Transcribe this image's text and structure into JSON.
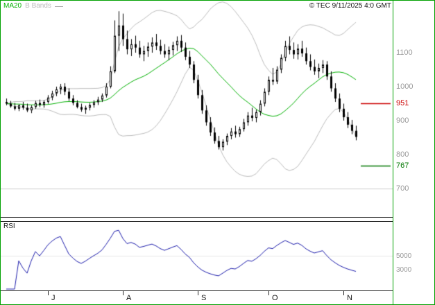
{
  "header": {
    "ma20_label": "MA20",
    "bbands_label": "B Bands",
    "copyright": "© TEC 9/11/2025 4:0 GMT"
  },
  "panels": {
    "rsi_label": "RSI"
  },
  "colors": {
    "border": "#00a000",
    "ma20": "#00b000",
    "bbands": "#bbbbbb",
    "candle": "#000000",
    "rsi": "#1a1aaa",
    "resistance": "#cc0000",
    "support": "#007700",
    "axis_text": "#999999",
    "grid": "#cccccc"
  },
  "levels": {
    "resistance": {
      "value": 951,
      "label": "951"
    },
    "support": {
      "value": 767,
      "label": "767"
    }
  },
  "y_axis": {
    "labels": [
      {
        "text": "1100",
        "value": 1100
      },
      {
        "text": "1000",
        "value": 1000
      },
      {
        "text": "951",
        "value": 951,
        "color": "resistance"
      },
      {
        "text": "900",
        "value": 900
      },
      {
        "text": "800",
        "value": 800
      },
      {
        "text": "767",
        "value": 767,
        "color": "support"
      },
      {
        "text": "700",
        "value": 700
      }
    ]
  },
  "x_axis": {
    "month_ticks": [
      {
        "label": "J",
        "index": 10
      },
      {
        "label": "A",
        "index": 28
      },
      {
        "label": "S",
        "index": 46
      },
      {
        "label": "O",
        "index": 63
      },
      {
        "label": "N",
        "index": 81
      }
    ]
  },
  "rsi_axis": {
    "labels": [
      {
        "text": "5000",
        "value": 50
      },
      {
        "text": "3000",
        "value": 30
      }
    ]
  },
  "chart_data": {
    "type": "candlestick",
    "title": "",
    "legend": [
      "MA20",
      "B Bands"
    ],
    "ylim": [
      680,
      1250
    ],
    "indicators": {
      "ma_period": 20,
      "bollinger_stddev": 2,
      "rsi_period": 14
    },
    "levels": {
      "resistance": 951,
      "support": 767
    },
    "candles_format": "[open, high, low, close]",
    "candles": [
      [
        955,
        965,
        945,
        950
      ],
      [
        950,
        958,
        938,
        942
      ],
      [
        942,
        952,
        930,
        935
      ],
      [
        935,
        948,
        928,
        945
      ],
      [
        945,
        955,
        932,
        938
      ],
      [
        938,
        950,
        925,
        930
      ],
      [
        930,
        945,
        922,
        940
      ],
      [
        940,
        958,
        935,
        952
      ],
      [
        952,
        962,
        940,
        946
      ],
      [
        946,
        960,
        938,
        955
      ],
      [
        955,
        975,
        950,
        968
      ],
      [
        968,
        988,
        960,
        980
      ],
      [
        980,
        1000,
        972,
        992
      ],
      [
        992,
        1008,
        978,
        1000
      ],
      [
        1000,
        1010,
        975,
        985
      ],
      [
        985,
        995,
        958,
        965
      ],
      [
        965,
        975,
        945,
        952
      ],
      [
        952,
        960,
        936,
        940
      ],
      [
        940,
        950,
        926,
        932
      ],
      [
        932,
        944,
        920,
        938
      ],
      [
        938,
        952,
        930,
        946
      ],
      [
        946,
        960,
        938,
        954
      ],
      [
        954,
        970,
        946,
        962
      ],
      [
        962,
        980,
        955,
        974
      ],
      [
        974,
        1010,
        968,
        1000
      ],
      [
        1000,
        1060,
        995,
        1045
      ],
      [
        1045,
        1195,
        1040,
        1150
      ],
      [
        1150,
        1222,
        1105,
        1180
      ],
      [
        1180,
        1215,
        1120,
        1140
      ],
      [
        1140,
        1165,
        1095,
        1110
      ],
      [
        1110,
        1140,
        1090,
        1125
      ],
      [
        1125,
        1150,
        1100,
        1115
      ],
      [
        1115,
        1135,
        1085,
        1095
      ],
      [
        1095,
        1120,
        1075,
        1105
      ],
      [
        1105,
        1130,
        1088,
        1118
      ],
      [
        1118,
        1145,
        1100,
        1130
      ],
      [
        1130,
        1155,
        1108,
        1120
      ],
      [
        1120,
        1138,
        1095,
        1105
      ],
      [
        1105,
        1125,
        1085,
        1095
      ],
      [
        1095,
        1118,
        1078,
        1108
      ],
      [
        1108,
        1132,
        1092,
        1122
      ],
      [
        1122,
        1148,
        1105,
        1135
      ],
      [
        1135,
        1152,
        1102,
        1115
      ],
      [
        1115,
        1130,
        1078,
        1088
      ],
      [
        1088,
        1105,
        1055,
        1065
      ],
      [
        1065,
        1075,
        1010,
        1020
      ],
      [
        1020,
        1035,
        965,
        975
      ],
      [
        975,
        990,
        920,
        930
      ],
      [
        930,
        945,
        885,
        895
      ],
      [
        895,
        910,
        855,
        865
      ],
      [
        865,
        880,
        832,
        840
      ],
      [
        840,
        855,
        815,
        822
      ],
      [
        822,
        845,
        812,
        838
      ],
      [
        838,
        862,
        828,
        855
      ],
      [
        855,
        878,
        845,
        868
      ],
      [
        868,
        885,
        850,
        860
      ],
      [
        860,
        882,
        852,
        875
      ],
      [
        875,
        905,
        868,
        895
      ],
      [
        895,
        925,
        885,
        915
      ],
      [
        915,
        938,
        898,
        908
      ],
      [
        908,
        932,
        895,
        925
      ],
      [
        925,
        960,
        915,
        950
      ],
      [
        950,
        995,
        942,
        985
      ],
      [
        985,
        1030,
        975,
        1020
      ],
      [
        1020,
        1055,
        1005,
        1015
      ],
      [
        1015,
        1060,
        1008,
        1050
      ],
      [
        1050,
        1095,
        1040,
        1085
      ],
      [
        1085,
        1135,
        1075,
        1120
      ],
      [
        1120,
        1148,
        1095,
        1108
      ],
      [
        1108,
        1130,
        1082,
        1095
      ],
      [
        1095,
        1125,
        1080,
        1112
      ],
      [
        1112,
        1135,
        1088,
        1098
      ],
      [
        1098,
        1115,
        1065,
        1075
      ],
      [
        1075,
        1095,
        1048,
        1058
      ],
      [
        1058,
        1080,
        1035,
        1045
      ],
      [
        1045,
        1068,
        1025,
        1055
      ],
      [
        1055,
        1078,
        1040,
        1065
      ],
      [
        1065,
        1075,
        1020,
        1030
      ],
      [
        1030,
        1045,
        985,
        995
      ],
      [
        995,
        1010,
        955,
        965
      ],
      [
        965,
        980,
        925,
        935
      ],
      [
        935,
        950,
        900,
        910
      ],
      [
        910,
        925,
        878,
        888
      ],
      [
        888,
        902,
        860,
        870
      ],
      [
        870,
        885,
        842,
        852
      ]
    ]
  }
}
